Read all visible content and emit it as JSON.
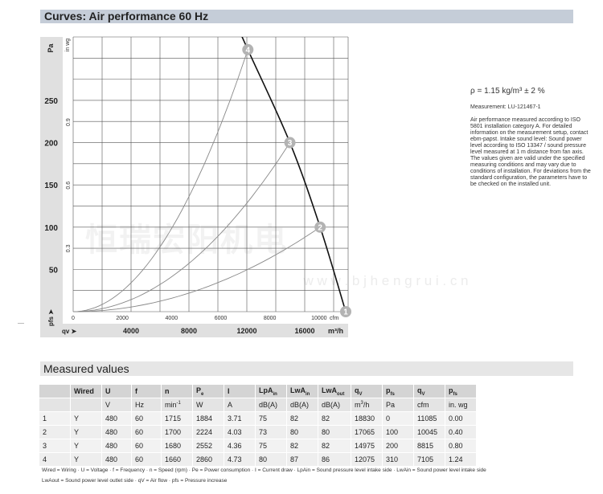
{
  "header": {
    "title": "Curves: Air performance 60 Hz"
  },
  "watermark": {
    "cn": "恒瑞宏阳机电",
    "url": "w w w . b j h e n g r u i . c n"
  },
  "side": {
    "density": "ρ = 1.15 kg/m³ ± 2 %",
    "measurement": "Measurement: LU-121467-1",
    "note": "Air performance measured according to ISO 5801 installation category A. For detailed information on the measurement setup, contact ebm-papst. Intake sound level: Sound power level according to ISO 13347 / sound pressure level measured at 1 m distance from fan axis. The values given are valid under the specified measuring conditions and may vary due to conditions of installation. For deviations from the standard configuration, the parameters have to be checked on the installed unit."
  },
  "chart_data": {
    "type": "line",
    "title": "Curves: Air performance 60 Hz",
    "ylabel": "Pa",
    "ylabel_secondary": "in wg",
    "y_axis_symbol": "pfs",
    "x_axis_symbol": "qv",
    "xlabel": "m³/h",
    "xlabel_secondary": "cfm",
    "ylim": [
      0,
      325
    ],
    "xlim_m3h": [
      0,
      19000
    ],
    "grid": true,
    "y_ticks": [
      50,
      100,
      150,
      200,
      250
    ],
    "y2_ticks": [
      "0.3",
      "0.6",
      "0.9"
    ],
    "x_ticks_cfm": [
      "0",
      "2000",
      "4000",
      "6000",
      "8000",
      "10000"
    ],
    "x_ticks_m3h": [
      "4000",
      "8000",
      "12000",
      "16000"
    ],
    "colors": {
      "fan_curve": "#111111",
      "system_curves": "#888888",
      "markers": "#b3b3b3",
      "frame": "#e0e0e0"
    },
    "operating_points": [
      {
        "label": "1",
        "cfm": 11085,
        "pa": 0
      },
      {
        "label": "2",
        "cfm": 10045,
        "pa": 100
      },
      {
        "label": "3",
        "cfm": 8815,
        "pa": 200
      },
      {
        "label": "4",
        "cfm": 7105,
        "pa": 310
      }
    ]
  },
  "measured": {
    "title": "Measured values",
    "headers": [
      "",
      "Wired",
      "U",
      "f",
      "n",
      "Pe",
      "I",
      "LpAin",
      "LwAin",
      "LwAout",
      "qV",
      "pfs",
      "qV",
      "pfs"
    ],
    "units": [
      "",
      "",
      "V",
      "Hz",
      "min-1",
      "W",
      "A",
      "dB(A)",
      "dB(A)",
      "dB(A)",
      "m3/h",
      "Pa",
      "cfm",
      "in. wg"
    ],
    "rows": [
      [
        "1",
        "Y",
        "480",
        "60",
        "1715",
        "1884",
        "3.71",
        "75",
        "82",
        "82",
        "18830",
        "0",
        "11085",
        "0.00"
      ],
      [
        "2",
        "Y",
        "480",
        "60",
        "1700",
        "2224",
        "4.03",
        "73",
        "80",
        "80",
        "17065",
        "100",
        "10045",
        "0.40"
      ],
      [
        "3",
        "Y",
        "480",
        "60",
        "1680",
        "2552",
        "4.36",
        "75",
        "82",
        "82",
        "14975",
        "200",
        "8815",
        "0.80"
      ],
      [
        "4",
        "Y",
        "480",
        "60",
        "1660",
        "2860",
        "4.73",
        "80",
        "87",
        "86",
        "12075",
        "310",
        "7105",
        "1.24"
      ]
    ],
    "legend1": "Wired = Wiring · U = Voltage · f = Frequency · n = Speed (rpm) · Pe = Power consumption · I = Current draw · LpAin = Sound pressure level intake side · LwAin = Sound power level intake side",
    "legend2": "LwAout = Sound power level outlet side · qV = Air flow · pfs = Pressure increase"
  }
}
